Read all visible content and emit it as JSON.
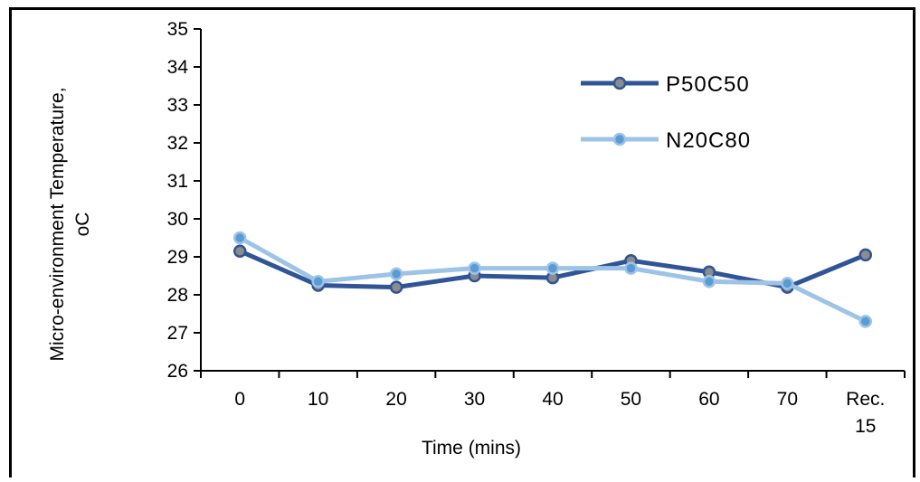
{
  "chart_data": {
    "type": "line",
    "categories": [
      "0",
      "10",
      "20",
      "30",
      "40",
      "50",
      "60",
      "70",
      "Rec. 15"
    ],
    "series": [
      {
        "name": "P50C50",
        "values": [
          29.15,
          28.25,
          28.2,
          28.5,
          28.45,
          28.9,
          28.6,
          28.2,
          29.05
        ],
        "color": "#2f5597",
        "marker": "#8c8c8c"
      },
      {
        "name": "N20C80",
        "values": [
          29.5,
          28.35,
          28.55,
          28.7,
          28.7,
          28.7,
          28.35,
          28.3,
          27.3
        ],
        "color": "#9dc3e6",
        "marker": "#5b9bd5"
      }
    ],
    "xlabel": "Time (mins)",
    "ylabel_line1": "Micro-environment Temperature,",
    "ylabel_line2": "oC",
    "ylim": [
      26,
      35
    ],
    "yticks": [
      "26",
      "27",
      "28",
      "29",
      "30",
      "31",
      "32",
      "33",
      "34",
      "35"
    ],
    "legend_position": "top-right",
    "grid": false
  }
}
